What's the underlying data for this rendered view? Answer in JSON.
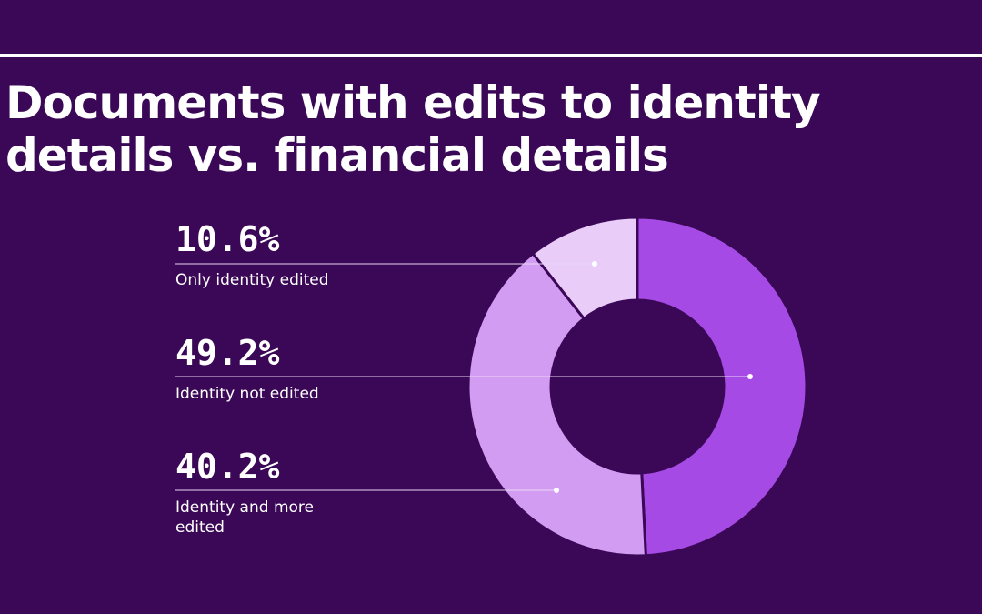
{
  "title": "Documents with edits to identity details vs. financial details",
  "chart_data": {
    "type": "pie",
    "title": "Documents with edits to identity details vs. financial details",
    "slices": [
      {
        "value_label": "49.2%",
        "value": 49.2,
        "label": "Identity not edited",
        "color": "#a64ae6"
      },
      {
        "value_label": "40.2%",
        "value": 40.2,
        "label": "Identity and more edited",
        "color": "#d39cf3"
      },
      {
        "value_label": "10.6%",
        "value": 10.6,
        "label": "Only identity edited",
        "color": "#e9ccf8"
      }
    ],
    "legend_order": [
      2,
      0,
      1
    ],
    "donut": true
  }
}
